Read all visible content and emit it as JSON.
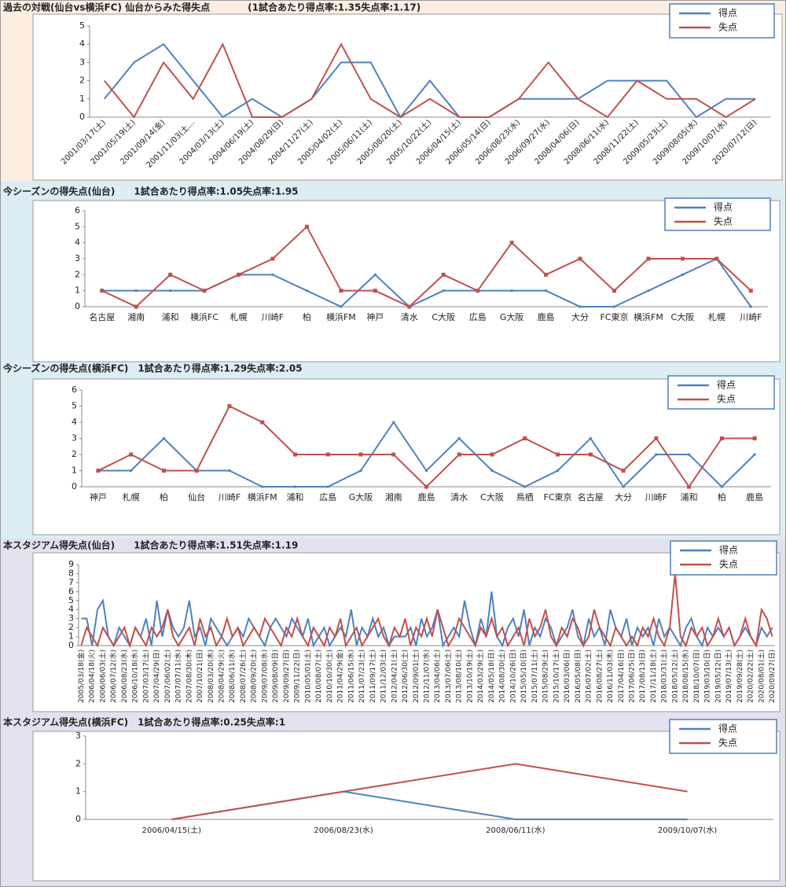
{
  "chart_data": [
    {
      "type": "line",
      "title": "過去の対戦(仙台vs横浜FC)  仙台からみた得失点　　　　(1試合あたり得点率:1.35失点率:1.17)",
      "categories": [
        "2001/03/17(土)",
        "2001/05/19(土)",
        "2001/09/14(金)",
        "2001/11/03(土…",
        "2004/03/13(土)",
        "2004/06/19(土)",
        "2004/08/29(日)",
        "2004/11/27(土)",
        "2005/04/02(土)",
        "2005/06/11(土)",
        "2005/08/20(土)",
        "2005/10/22(土)",
        "2006/04/15(土)",
        "2006/05/14(日)",
        "2006/08/23(水)",
        "2006/09/27(水)",
        "2008/04/06(日)",
        "2008/06/11(水)",
        "2008/11/22(土)",
        "2009/05/23(土)",
        "2009/08/05(水)",
        "2009/10/07(水)",
        "2020/07/12(日)"
      ],
      "series": [
        {
          "name": "得点",
          "color": "#4f81bd",
          "values": [
            1,
            3,
            4,
            2,
            0,
            1,
            0,
            1,
            3,
            3,
            0,
            2,
            0,
            0,
            1,
            1,
            1,
            2,
            2,
            2,
            0,
            1,
            1
          ]
        },
        {
          "name": "失点",
          "color": "#c0504d",
          "values": [
            2,
            0,
            3,
            1,
            4,
            0,
            0,
            1,
            4,
            1,
            0,
            1,
            0,
            0,
            1,
            3,
            1,
            0,
            2,
            1,
            1,
            0,
            1
          ]
        }
      ],
      "ylim": [
        0,
        5
      ],
      "yticks": [
        0,
        1,
        2,
        3,
        4,
        5
      ],
      "grid": false
    },
    {
      "type": "line",
      "title": "今シーズンの得失点(仙台)　　1試合あたり得点率:1.05失点率:1.95",
      "categories": [
        "名古屋",
        "湘南",
        "浦和",
        "横浜FC",
        "札幌",
        "川崎F",
        "柏",
        "横浜FM",
        "神戸",
        "清水",
        "C大阪",
        "広島",
        "G大阪",
        "鹿島",
        "大分",
        "FC東京",
        "横浜FM",
        "C大阪",
        "札幌",
        "川崎F"
      ],
      "series": [
        {
          "name": "得点",
          "color": "#4f81bd",
          "marker": "square",
          "values": [
            1,
            1,
            1,
            1,
            2,
            2,
            1,
            0,
            2,
            0,
            1,
            1,
            1,
            1,
            0,
            0,
            1,
            2,
            3,
            0
          ]
        },
        {
          "name": "失点",
          "color": "#c0504d",
          "marker": "square",
          "values": [
            1,
            0,
            2,
            1,
            2,
            3,
            5,
            1,
            1,
            0,
            2,
            1,
            4,
            2,
            3,
            1,
            3,
            3,
            3,
            1
          ]
        }
      ],
      "ylim": [
        0,
        6
      ],
      "yticks": [
        0,
        1,
        2,
        3,
        4,
        5,
        6
      ],
      "grid": false
    },
    {
      "type": "line",
      "title": "今シーズンの得失点(横浜FC)　1試合あたり得点率:1.29失点率:2.05",
      "categories": [
        "神戸",
        "札幌",
        "柏",
        "仙台",
        "川崎F",
        "横浜FM",
        "浦和",
        "広島",
        "G大阪",
        "湘南",
        "鹿島",
        "清水",
        "C大阪",
        "鳥栖",
        "FC東京",
        "名古屋",
        "大分",
        "川崎F",
        "浦和",
        "柏",
        "鹿島"
      ],
      "series": [
        {
          "name": "得点",
          "color": "#4f81bd",
          "marker": "square",
          "values": [
            1,
            1,
            3,
            1,
            1,
            0,
            0,
            0,
            1,
            4,
            1,
            3,
            1,
            0,
            1,
            3,
            0,
            2,
            2,
            0,
            2
          ]
        },
        {
          "name": "失点",
          "color": "#c0504d",
          "marker": "square",
          "values": [
            1,
            2,
            1,
            1,
            5,
            4,
            2,
            2,
            2,
            2,
            0,
            2,
            2,
            3,
            2,
            2,
            1,
            3,
            0,
            3,
            3
          ]
        }
      ],
      "ylim": [
        0,
        6
      ],
      "yticks": [
        0,
        1,
        2,
        3,
        4,
        5,
        6
      ],
      "grid": false
    },
    {
      "type": "line",
      "title": "本スタジアム得失点(仙台)　　1試合あたり得点率:1.51失点率:1.19",
      "categories": [
        "2005/03/18(金)",
        null,
        "2006/04/18(火)",
        null,
        "2006/06/03(土)",
        null,
        "2006/07/12(水)",
        null,
        "2006/08/23(水)",
        null,
        "2006/10/18(水)",
        null,
        "2007/03/17(土)",
        null,
        "2007/04/29(日)",
        null,
        "2007/06/02(土)",
        null,
        "2007/07/11(水)",
        null,
        "2007/08/30(木)",
        null,
        "2007/10/21(日)",
        null,
        "2008/03/20(木)",
        null,
        "2008/04/29(火)",
        null,
        "2008/06/11(水)",
        null,
        "2008/07/26(土)",
        null,
        "2008/09/20(土)",
        null,
        "2009/07/08(水)",
        null,
        "2009/08/09(日)",
        null,
        "2009/09/27(日)",
        null,
        "2009/11/22(日)",
        null,
        "2010/05/01(土)",
        null,
        "2010/08/07(土)",
        null,
        "2010/10/30(土)",
        null,
        "2011/04/29(金)",
        null,
        "2011/06/15(水)",
        null,
        "2011/07/23(土)",
        null,
        "2011/09/17(土)",
        null,
        "2011/12/03(土)",
        null,
        "2012/04/21(土)",
        null,
        "2012/06/30(土)",
        null,
        "2012/09/01(土)",
        null,
        "2012/11/07(水)",
        null,
        "2013/04/06(土)",
        null,
        "2013/07/06(土)",
        null,
        "2013/08/10(土)",
        null,
        "2013/10/19(土)",
        null,
        "2014/03/29(土)",
        null,
        "2014/05/18(日)",
        null,
        "2014/08/30(土)",
        null,
        "2014/10/26(日)",
        null,
        "2015/05/10(日)",
        null,
        "2015/07/11(土)",
        null,
        "2015/08/29(土)",
        null,
        "2015/10/17(土)",
        null,
        "2016/03/06(日)",
        null,
        "2016/05/08(日)",
        null,
        "2016/07/02(土)",
        null,
        "2016/08/27(土)",
        null,
        "2016/11/03(木)",
        null,
        "2017/04/16(日)",
        null,
        "2017/06/25(日)",
        null,
        "2017/08/13(日)",
        null,
        "2017/11/18(土)",
        null,
        "2018/03/31(土)",
        null,
        "2018/05/12(土)",
        null,
        "2018/08/15(水)",
        null,
        "2018/10/07(日)",
        null,
        "2019/03/10(日)",
        null,
        "2019/05/12(日)",
        null,
        "2019/07/13(土)",
        null,
        "2019/09/28(土)",
        null,
        "2020/02/22(土)",
        null,
        "2020/08/01(土)",
        null,
        "2020/09/27(日)"
      ],
      "series": [
        {
          "name": "得点",
          "color": "#4f81bd",
          "values": [
            3,
            3,
            0,
            4,
            5,
            1,
            0,
            2,
            1,
            0,
            2,
            1,
            3,
            0,
            5,
            1,
            4,
            2,
            1,
            2,
            5,
            1,
            2,
            0,
            3,
            2,
            1,
            0,
            1,
            2,
            1,
            3,
            2,
            1,
            0,
            2,
            3,
            2,
            1,
            3,
            2,
            1,
            3,
            0,
            1,
            2,
            0,
            1,
            2,
            1,
            4,
            0,
            2,
            1,
            3,
            1,
            2,
            0,
            1,
            1,
            1,
            2,
            0,
            3,
            1,
            2,
            4,
            0,
            1,
            2,
            1,
            5,
            2,
            0,
            3,
            1,
            6,
            1,
            0,
            2,
            3,
            1,
            4,
            0,
            2,
            1,
            3,
            2,
            0,
            1,
            2,
            4,
            1,
            0,
            3,
            1,
            2,
            0,
            4,
            2,
            1,
            3,
            0,
            2,
            1,
            2,
            0,
            3,
            1,
            2,
            1,
            0,
            2,
            3,
            1,
            0,
            2,
            1,
            2,
            1,
            2,
            0,
            1,
            2,
            1,
            0,
            2,
            1,
            2
          ]
        },
        {
          "name": "失点",
          "color": "#c0504d",
          "values": [
            0,
            2,
            1,
            0,
            2,
            1,
            0,
            1,
            2,
            0,
            2,
            1,
            0,
            2,
            1,
            2,
            4,
            1,
            0,
            1,
            2,
            0,
            3,
            1,
            2,
            0,
            1,
            3,
            1,
            2,
            0,
            1,
            2,
            1,
            3,
            2,
            1,
            0,
            2,
            1,
            3,
            1,
            0,
            2,
            1,
            0,
            2,
            1,
            3,
            0,
            1,
            2,
            0,
            1,
            2,
            3,
            1,
            0,
            2,
            1,
            3,
            0,
            2,
            1,
            3,
            1,
            4,
            2,
            0,
            1,
            3,
            2,
            1,
            0,
            2,
            1,
            3,
            1,
            2,
            0,
            1,
            2,
            0,
            3,
            1,
            2,
            4,
            1,
            0,
            2,
            1,
            3,
            2,
            0,
            1,
            4,
            2,
            1,
            0,
            2,
            1,
            0,
            1,
            0,
            2,
            1,
            3,
            1,
            0,
            2,
            8,
            1,
            0,
            2,
            1,
            2,
            0,
            1,
            3,
            1,
            2,
            0,
            1,
            3,
            1,
            0,
            4,
            3,
            1
          ]
        }
      ],
      "ylim": [
        0,
        9
      ],
      "yticks": [
        0,
        1,
        2,
        3,
        4,
        5,
        6,
        7,
        8,
        9
      ],
      "grid": false
    },
    {
      "type": "line",
      "title": "本スタジアム得失点(横浜FC)　1試合あたり得点率:0.25失点率:1",
      "categories": [
        "2006/04/15(土)",
        "2006/08/23(水)",
        "2008/06/11(水)",
        "2009/10/07(水)"
      ],
      "series": [
        {
          "name": "得点",
          "color": "#4f81bd",
          "values": [
            0,
            1,
            0,
            0
          ]
        },
        {
          "name": "失点",
          "color": "#c0504d",
          "values": [
            0,
            1,
            2,
            1
          ]
        }
      ],
      "ylim": [
        0,
        3
      ],
      "yticks": [
        0,
        1,
        2,
        3
      ],
      "grid": false
    }
  ]
}
